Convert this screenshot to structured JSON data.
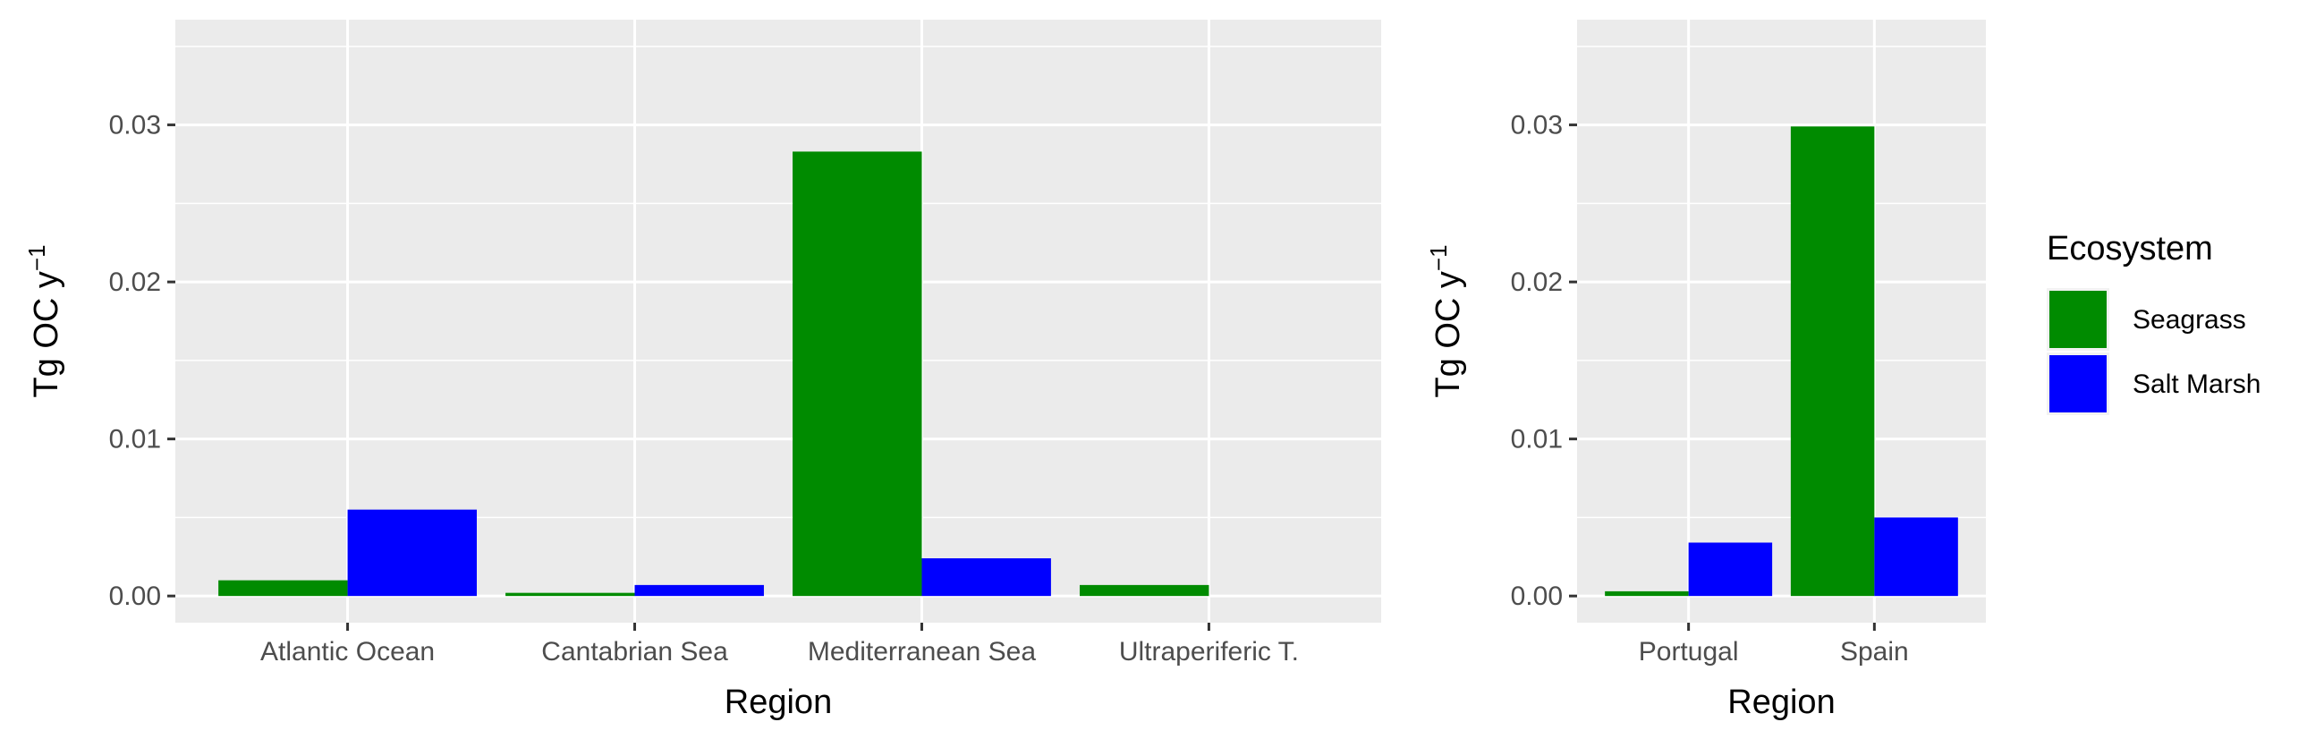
{
  "chart_data": [
    {
      "type": "bar",
      "categories": [
        "Atlantic Ocean",
        "Cantabrian Sea",
        "Mediterranean Sea",
        "Ultraperiferic T."
      ],
      "series": [
        {
          "name": "Seagrass",
          "values": [
            0.001,
            0.0002,
            0.0283,
            0.0007
          ]
        },
        {
          "name": "Salt Marsh",
          "values": [
            0.0055,
            0.0007,
            0.0024,
            0
          ]
        }
      ],
      "yticks": [
        "0.00",
        "0.01",
        "0.02",
        "0.03"
      ],
      "ylim": [
        -0.0017,
        0.0367
      ],
      "xlabel": "Region",
      "ylabel_main": "Tg OC y",
      "ylabel_sup": "−1",
      "grid": true
    },
    {
      "type": "bar",
      "categories": [
        "Portugal",
        "Spain"
      ],
      "series": [
        {
          "name": "Seagrass",
          "values": [
            0.0003,
            0.0299
          ]
        },
        {
          "name": "Salt Marsh",
          "values": [
            0.0034,
            0.005
          ]
        }
      ],
      "yticks": [
        "0.00",
        "0.01",
        "0.02",
        "0.03"
      ],
      "ylim": [
        -0.0017,
        0.0367
      ],
      "xlabel": "Region",
      "ylabel_main": "Tg OC y",
      "ylabel_sup": "−1",
      "grid": true
    }
  ],
  "legend": {
    "title": "Ecosystem",
    "position": "right",
    "items": [
      {
        "label": "Seagrass",
        "color": "#008B00"
      },
      {
        "label": "Salt Marsh",
        "color": "#0000FF"
      }
    ]
  },
  "colors": {
    "panel_background": "#EBEBEB",
    "grid_line": "#FFFFFF",
    "seagrass": "#008B00",
    "salt_marsh": "#0000FF"
  }
}
